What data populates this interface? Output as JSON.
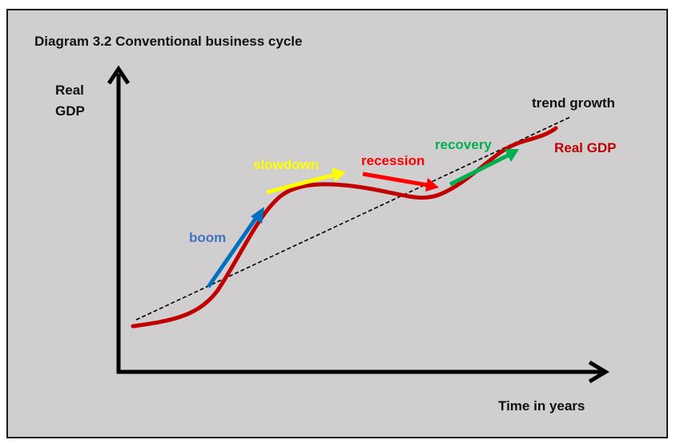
{
  "title": "Diagram 3.2 Conventional business cycle",
  "axes": {
    "y_label_line1": "Real",
    "y_label_line2": "GDP",
    "x_label": "Time in years"
  },
  "curves": {
    "trend_label": "trend growth",
    "gdp_label": "Real GDP"
  },
  "phases": {
    "boom": "boom",
    "slowdown": "slowdown",
    "recession": "recession",
    "recovery": "recovery"
  },
  "colors": {
    "background": "#d0cece",
    "real_gdp": "#c00000",
    "boom": "#0070c0",
    "boom_text": "#4472c4",
    "slowdown": "#ffff00",
    "recession": "#ff0000",
    "recovery": "#00b050",
    "axis": "#000000"
  }
}
